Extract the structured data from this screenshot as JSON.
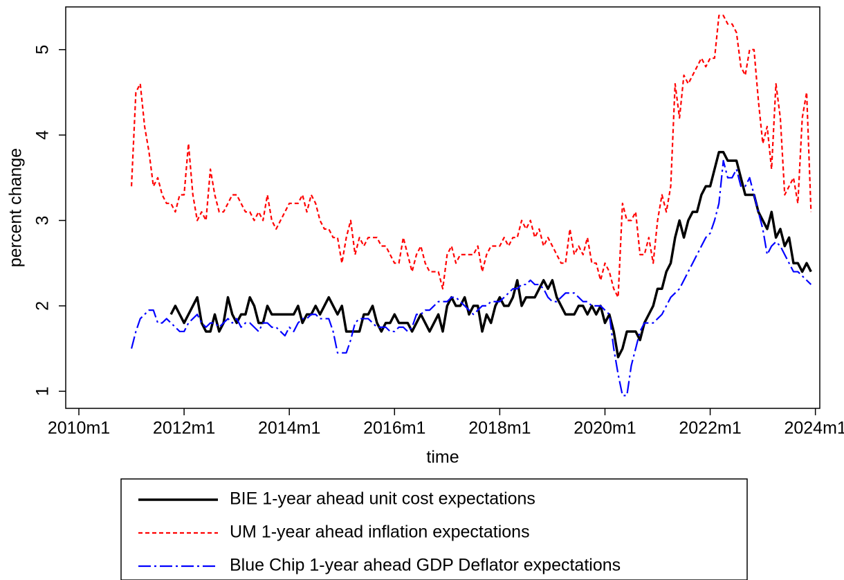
{
  "chart_data": {
    "type": "line",
    "x_label": "time",
    "y_label": "percent change",
    "xlim": [
      597,
      769
    ],
    "ylim": [
      0.8,
      5.5
    ],
    "xticks": [
      {
        "value": 600,
        "label": "2010m1"
      },
      {
        "value": 624,
        "label": "2012m1"
      },
      {
        "value": 648,
        "label": "2014m1"
      },
      {
        "value": 672,
        "label": "2016m1"
      },
      {
        "value": 696,
        "label": "2018m1"
      },
      {
        "value": 720,
        "label": "2020m1"
      },
      {
        "value": 744,
        "label": "2022m1"
      },
      {
        "value": 768,
        "label": "2024m1"
      }
    ],
    "yticks": [
      1,
      2,
      3,
      4,
      5
    ],
    "legend": "bottom",
    "x": [
      612,
      613,
      614,
      615,
      616,
      617,
      618,
      619,
      620,
      621,
      622,
      623,
      624,
      625,
      626,
      627,
      628,
      629,
      630,
      631,
      632,
      633,
      634,
      635,
      636,
      637,
      638,
      639,
      640,
      641,
      642,
      643,
      644,
      645,
      646,
      647,
      648,
      649,
      650,
      651,
      652,
      653,
      654,
      655,
      656,
      657,
      658,
      659,
      660,
      661,
      662,
      663,
      664,
      665,
      666,
      667,
      668,
      669,
      670,
      671,
      672,
      673,
      674,
      675,
      676,
      677,
      678,
      679,
      680,
      681,
      682,
      683,
      684,
      685,
      686,
      687,
      688,
      689,
      690,
      691,
      692,
      693,
      694,
      695,
      696,
      697,
      698,
      699,
      700,
      701,
      702,
      703,
      704,
      705,
      706,
      707,
      708,
      709,
      710,
      711,
      712,
      713,
      714,
      715,
      716,
      717,
      718,
      719,
      720,
      721,
      722,
      723,
      724,
      725,
      726,
      727,
      728,
      729,
      730,
      731,
      732,
      733,
      734,
      735,
      736,
      737,
      738,
      739,
      740,
      741,
      742,
      743,
      744,
      745,
      746,
      747,
      748,
      749,
      750,
      751,
      752,
      753,
      754,
      755,
      756,
      757,
      758,
      759,
      760,
      761,
      762,
      763,
      764,
      765,
      766,
      767
    ],
    "series": [
      {
        "name": "BIE 1-year ahead unit cost expectations",
        "color": "#000000",
        "style": "solid",
        "values": [
          null,
          null,
          null,
          null,
          null,
          null,
          null,
          null,
          null,
          1.9,
          2.0,
          1.9,
          1.8,
          1.9,
          2.0,
          2.1,
          1.8,
          1.7,
          1.7,
          1.9,
          1.7,
          1.8,
          2.1,
          1.9,
          1.8,
          1.9,
          1.9,
          2.1,
          2.0,
          1.8,
          1.8,
          2.0,
          1.9,
          1.9,
          1.9,
          1.9,
          1.9,
          1.9,
          2.0,
          1.8,
          1.9,
          1.9,
          2.0,
          1.9,
          2.0,
          2.1,
          2.0,
          1.9,
          2.0,
          1.7,
          1.7,
          1.7,
          1.7,
          1.9,
          1.9,
          2.0,
          1.8,
          1.7,
          1.8,
          1.8,
          1.9,
          1.8,
          1.8,
          1.8,
          1.7,
          1.8,
          1.9,
          1.8,
          1.7,
          1.8,
          1.9,
          1.7,
          2.0,
          2.1,
          2.0,
          2.0,
          2.1,
          1.9,
          2.0,
          2.0,
          1.7,
          1.9,
          1.8,
          2.0,
          2.1,
          2.0,
          2.0,
          2.1,
          2.3,
          2.0,
          2.1,
          2.1,
          2.1,
          2.2,
          2.3,
          2.2,
          2.3,
          2.1,
          2.0,
          1.9,
          1.9,
          1.9,
          2.0,
          2.0,
          1.9,
          2.0,
          1.9,
          2.0,
          1.8,
          1.9,
          1.7,
          1.4,
          1.5,
          1.7,
          1.7,
          1.7,
          1.6,
          1.8,
          1.9,
          2.0,
          2.2,
          2.2,
          2.4,
          2.5,
          2.8,
          3.0,
          2.8,
          3.0,
          3.1,
          3.1,
          3.3,
          3.4,
          3.4,
          3.6,
          3.8,
          3.8,
          3.7,
          3.7,
          3.7,
          3.5,
          3.3,
          3.3,
          3.3,
          3.1,
          3.0,
          2.9,
          3.1,
          2.8,
          2.9,
          2.7,
          2.8,
          2.5,
          2.5,
          2.4,
          2.5,
          2.4
        ]
      },
      {
        "name": "UM 1-year ahead inflation expectations",
        "color": "#ff0000",
        "style": "dashed",
        "values": [
          3.4,
          4.5,
          4.6,
          4.1,
          3.8,
          3.4,
          3.5,
          3.3,
          3.2,
          3.2,
          3.1,
          3.3,
          3.3,
          3.9,
          3.3,
          3.0,
          3.1,
          3.0,
          3.6,
          3.3,
          3.1,
          3.1,
          3.2,
          3.3,
          3.3,
          3.2,
          3.1,
          3.1,
          3.0,
          3.1,
          3.0,
          3.3,
          3.0,
          2.9,
          3.0,
          3.1,
          3.2,
          3.2,
          3.2,
          3.3,
          3.1,
          3.3,
          3.2,
          3.0,
          2.9,
          2.9,
          2.8,
          2.8,
          2.5,
          2.8,
          3.0,
          2.6,
          2.8,
          2.7,
          2.8,
          2.8,
          2.8,
          2.7,
          2.7,
          2.6,
          2.5,
          2.5,
          2.8,
          2.6,
          2.4,
          2.6,
          2.7,
          2.5,
          2.4,
          2.4,
          2.4,
          2.2,
          2.6,
          2.7,
          2.5,
          2.6,
          2.6,
          2.6,
          2.6,
          2.7,
          2.4,
          2.6,
          2.7,
          2.7,
          2.7,
          2.8,
          2.7,
          2.8,
          2.8,
          3.0,
          2.9,
          3.0,
          2.8,
          2.9,
          2.7,
          2.8,
          2.7,
          2.6,
          2.5,
          2.5,
          2.9,
          2.6,
          2.7,
          2.6,
          2.8,
          2.5,
          2.5,
          2.3,
          2.5,
          2.4,
          2.2,
          2.1,
          3.2,
          3.0,
          3.0,
          3.1,
          2.6,
          2.6,
          2.8,
          2.5,
          3.0,
          3.3,
          3.1,
          3.4,
          4.6,
          4.2,
          4.7,
          4.6,
          4.7,
          4.8,
          4.9,
          4.8,
          4.9,
          4.9,
          5.4,
          5.4,
          5.3,
          5.3,
          5.2,
          4.8,
          4.7,
          5.0,
          5.0,
          4.4,
          3.9,
          4.1,
          3.6,
          4.6,
          4.2,
          3.3,
          3.4,
          3.5,
          3.2,
          4.2,
          4.5,
          3.1
        ]
      },
      {
        "name": "Blue Chip 1-year ahead GDP Deflator expectations",
        "color": "#0000ff",
        "style": "dashdot",
        "values": [
          1.5,
          1.7,
          1.85,
          1.9,
          1.95,
          1.95,
          1.8,
          1.8,
          1.85,
          1.8,
          1.75,
          1.7,
          1.7,
          1.8,
          1.85,
          1.9,
          1.8,
          1.75,
          1.8,
          1.8,
          1.75,
          1.8,
          1.85,
          1.8,
          1.85,
          1.75,
          1.8,
          1.8,
          1.75,
          1.7,
          1.8,
          1.8,
          1.75,
          1.75,
          1.7,
          1.65,
          1.75,
          1.7,
          1.8,
          1.85,
          1.85,
          1.9,
          1.9,
          1.85,
          1.85,
          1.85,
          1.7,
          1.45,
          1.45,
          1.45,
          1.6,
          1.8,
          1.85,
          1.85,
          1.85,
          1.8,
          1.75,
          1.75,
          1.75,
          1.7,
          1.7,
          1.75,
          1.75,
          1.7,
          1.75,
          1.9,
          1.9,
          1.95,
          1.95,
          2.0,
          2.05,
          2.05,
          2.05,
          2.1,
          2.1,
          2.05,
          2.0,
          1.95,
          1.9,
          1.95,
          2.0,
          2.0,
          2.05,
          2.05,
          2.05,
          2.1,
          2.15,
          2.2,
          2.2,
          2.25,
          2.25,
          2.3,
          2.25,
          2.25,
          2.2,
          2.1,
          2.05,
          2.05,
          2.1,
          2.15,
          2.15,
          2.15,
          2.1,
          2.05,
          2.05,
          2.0,
          2.0,
          2.0,
          1.95,
          1.9,
          1.5,
          1.2,
          0.95,
          0.95,
          1.3,
          1.5,
          1.7,
          1.8,
          1.8,
          1.8,
          1.85,
          1.9,
          2.0,
          2.1,
          2.15,
          2.2,
          2.3,
          2.4,
          2.5,
          2.6,
          2.7,
          2.8,
          2.85,
          3.0,
          3.2,
          3.7,
          3.5,
          3.5,
          3.6,
          3.4,
          3.4,
          3.5,
          3.3,
          3.1,
          2.9,
          2.6,
          2.7,
          2.75,
          2.7,
          2.6,
          2.5,
          2.4,
          2.4,
          2.35,
          2.3,
          2.25
        ]
      }
    ]
  }
}
